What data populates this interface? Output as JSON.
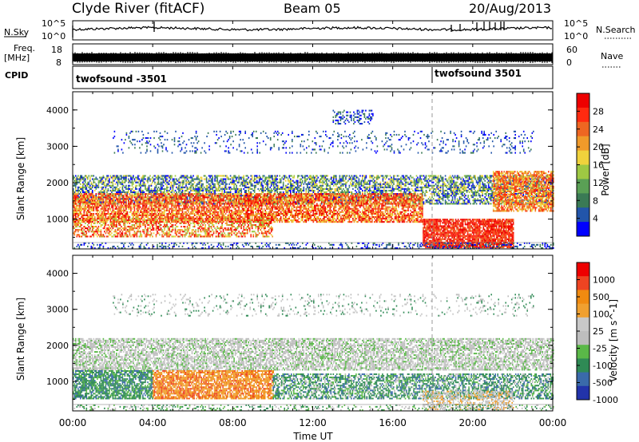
{
  "header": {
    "station": "Clyde River (fitACF)",
    "beam": "Beam 05",
    "date": "20/Aug/2013"
  },
  "panels": {
    "nsky_label": "N.Sky",
    "nsearch_label": "N.Search",
    "nsky_ticks": [
      "10^5",
      "10^0"
    ],
    "nsearch_ticks": [
      "10^5",
      "10^0"
    ],
    "freq_label_1": "Freq.",
    "freq_label_2": "[MHz]",
    "freq_ticks": [
      "18",
      "8"
    ],
    "nave_label": "Nave",
    "nave_ticks": [
      "60",
      "0"
    ],
    "cpid_label": "CPID",
    "cpid_left": "twofsound -3501",
    "cpid_right": "twofsound 3501"
  },
  "chart_data": [
    {
      "type": "heatmap",
      "title": "",
      "ylabel": "Slant Range [km]",
      "xlabel": "Time UT",
      "xlim_hours": [
        0,
        24
      ],
      "ylim_km": [
        180,
        4500
      ],
      "x_ticks": [
        "00:00",
        "04:00",
        "08:00",
        "12:00",
        "16:00",
        "20:00",
        "00:00"
      ],
      "y_ticks": [
        1000,
        2000,
        3000,
        4000
      ],
      "colorbar_label": "Power [dB]",
      "colorbar_ticks": [
        "28",
        "24",
        "20",
        "16",
        "12",
        "8",
        "4"
      ],
      "colorbar_colors": [
        "#0000ff",
        "#2255aa",
        "#3a7a55",
        "#5aa055",
        "#9ec843",
        "#f0d23c",
        "#f09a2a",
        "#ee6622",
        "#ff2a10",
        "#ee0000"
      ]
    },
    {
      "type": "heatmap",
      "title": "",
      "ylabel": "Slant Range [km]",
      "xlabel": "Time UT",
      "xlim_hours": [
        0,
        24
      ],
      "ylim_km": [
        180,
        4500
      ],
      "x_ticks": [
        "00:00",
        "04:00",
        "08:00",
        "12:00",
        "16:00",
        "20:00",
        "00:00"
      ],
      "y_ticks": [
        1000,
        2000,
        3000,
        4000
      ],
      "colorbar_label": "Velocity [m s^-1]",
      "colorbar_ticks": [
        "1000",
        "500",
        "100",
        "25",
        "-25",
        "-100",
        "-500",
        "-1000"
      ],
      "colorbar_colors": [
        "#2233aa",
        "#3a6aaa",
        "#2f8a55",
        "#5ab848",
        "#bdbdbd",
        "#c8c8c8",
        "#f0a030",
        "#f08a10",
        "#ee4422",
        "#ee0000"
      ]
    }
  ]
}
